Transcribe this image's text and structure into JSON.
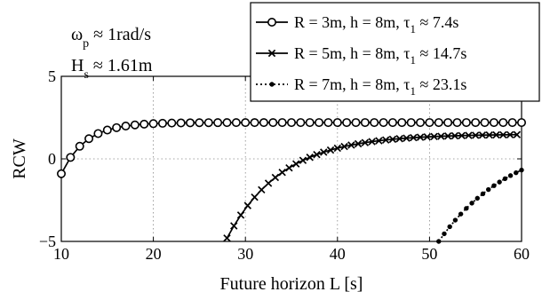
{
  "chart_data": {
    "type": "line",
    "title": "",
    "xlabel": "Future horizon L [s]",
    "ylabel": "RCW",
    "xlim": [
      10,
      60
    ],
    "ylim": [
      -5,
      5
    ],
    "xticks": [
      "10",
      "20",
      "30",
      "40",
      "50",
      "60"
    ],
    "yticks": [
      "5",
      "0",
      "−5"
    ],
    "grid": true,
    "legend_position": "top-right",
    "annotations": [
      {
        "symbol": "ω",
        "sub": "p",
        "rest": " ≈ 1rad/s"
      },
      {
        "symbol": "H",
        "sub": "s",
        "rest": " ≈ 1.61m"
      }
    ],
    "series": [
      {
        "name_main": "R = 3m, h = 8m, τ",
        "name_sub": "1",
        "name_tail": " ≈ 7.4s",
        "marker": "circle",
        "line_style": "solid",
        "x_start": 10,
        "x_end": 60,
        "x_step": 1,
        "model": {
          "y_inf": 2.2,
          "amplitude": 3.1,
          "t0": 10,
          "tau": 2.6
        }
      },
      {
        "name_main": "R = 5m, h = 8m, τ",
        "name_sub": "1",
        "name_tail": " ≈ 14.7s",
        "marker": "x",
        "line_style": "solid",
        "x_start": 28,
        "x_end": 60,
        "x_step": 0.75,
        "model": {
          "y_inf": 1.5,
          "amplitude": 6.3,
          "t0": 28,
          "tau": 6.0
        }
      },
      {
        "name_main": "R = 7m, h = 8m, τ",
        "name_sub": "1",
        "name_tail": " ≈ 23.1s",
        "marker": "dot",
        "line_style": "dotted",
        "x_start": 51,
        "x_end": 60,
        "x_step": 0.6,
        "model": {
          "y_inf": 1.4,
          "amplitude": 6.4,
          "t0": 51,
          "tau": 8.0
        }
      }
    ]
  }
}
